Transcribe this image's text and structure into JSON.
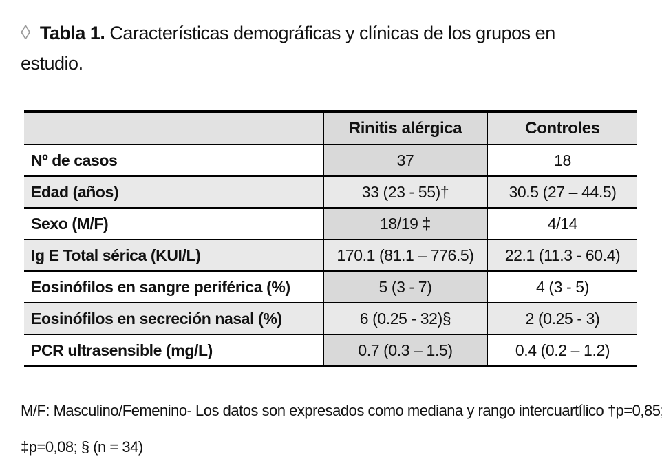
{
  "title": {
    "bullet": "◊",
    "label": "Tabla 1.",
    "text_line1": "Características demográficas y clínicas de los grupos en",
    "text_line2": "estudio."
  },
  "table": {
    "columns": [
      "",
      "Rinitis alérgica",
      "Controles"
    ],
    "rows": [
      {
        "label": "Nº de casos",
        "rinitis": "37",
        "controles": "18"
      },
      {
        "label": "Edad (años)",
        "rinitis": "33 (23 - 55)†",
        "controles": "30.5 (27 – 44.5)"
      },
      {
        "label": "Sexo (M/F)",
        "rinitis": "18/19 ‡",
        "controles": "4/14"
      },
      {
        "label": "Ig E Total sérica (KUI/L)",
        "rinitis": "170.1 (81.1 – 776.5)",
        "controles": "22.1 (11.3 - 60.4)"
      },
      {
        "label": "Eosinófilos en sangre periférica (%)",
        "rinitis": "5 (3 - 7)",
        "controles": "4 (3 - 5)"
      },
      {
        "label": "Eosinófilos en secreción nasal (%)",
        "rinitis": "6 (0.25 - 32)§",
        "controles": "2 (0.25 - 3)"
      },
      {
        "label": "PCR ultrasensible (mg/L)",
        "rinitis": "0.7 (0.3 – 1.5)",
        "controles": "0.4 (0.2 – 1.2)"
      }
    ]
  },
  "footnote": {
    "line1": "M/F: Masculino/Femenino- Los datos son expresados como mediana y rango intercuartílico †p=0,85;",
    "line2": "‡p=0,08; § (n = 34)"
  },
  "colors": {
    "header_gray": "#e2e2e2",
    "row_gray": "#e9e9e9",
    "rinitis_column_gray": "#d9d9d9",
    "border_black": "#000000",
    "bullet_gray": "#9b9b9b"
  }
}
